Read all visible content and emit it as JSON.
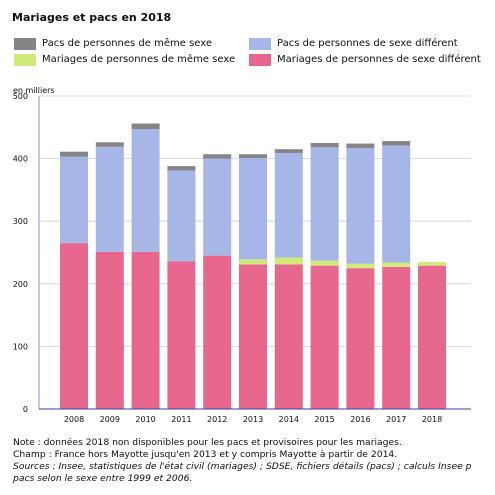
{
  "title": "Mariages et pacs en 2018",
  "unit_label": "en milliers",
  "legend": [
    {
      "label": "Pacs de personnes de même sexe",
      "color": "#858585"
    },
    {
      "label": "Pacs de personnes de sexe différent",
      "color": "#a6b6e6"
    },
    {
      "label": "Mariages de personnes de même sexe",
      "color": "#cfea7b"
    },
    {
      "label": "Mariages de personnes de sexe différent",
      "color": "#e8678f"
    }
  ],
  "chart_data": {
    "type": "bar",
    "stacked": true,
    "categories": [
      "2008",
      "2009",
      "2010",
      "2011",
      "2012",
      "2013",
      "2014",
      "2015",
      "2016",
      "2017",
      "2018"
    ],
    "ylim": [
      0,
      500
    ],
    "yticks": [
      "0",
      "100",
      "200",
      "300",
      "400",
      "500"
    ],
    "grid": true,
    "series": [
      {
        "name": "Mariages de personnes de sexe différent",
        "color": "#e8678f",
        "values": [
          265,
          251,
          251,
          236,
          245,
          231,
          231,
          229,
          225,
          227,
          229
        ]
      },
      {
        "name": "Mariages de personnes de même sexe",
        "color": "#cfea7b",
        "values": [
          0,
          0,
          0,
          0,
          0,
          8,
          11,
          8,
          7,
          7,
          6
        ]
      },
      {
        "name": "Pacs de personnes de sexe différent",
        "color": "#a6b6e6",
        "values": [
          138,
          168,
          196,
          145,
          155,
          162,
          167,
          181,
          185,
          187,
          null
        ]
      },
      {
        "name": "Pacs de personnes de même sexe",
        "color": "#858585",
        "values": [
          8,
          7,
          9,
          7,
          7,
          6,
          6,
          7,
          7,
          7,
          null
        ]
      }
    ]
  },
  "notes": {
    "line1": "Note : données 2018 non disponibles pour les pacs et provisoires pour les mariages.",
    "line2": "Champ : France hors Mayotte jusqu'en 2013 et y compris Mayotte à partir de 2014.",
    "line3": "Sources : Insee, statistiques de l'état civil (mariages) ; SDSE, fichiers détails (pacs) ; calculs Insee p",
    "line4": "pacs selon le sexe entre 1999 et 2006."
  }
}
